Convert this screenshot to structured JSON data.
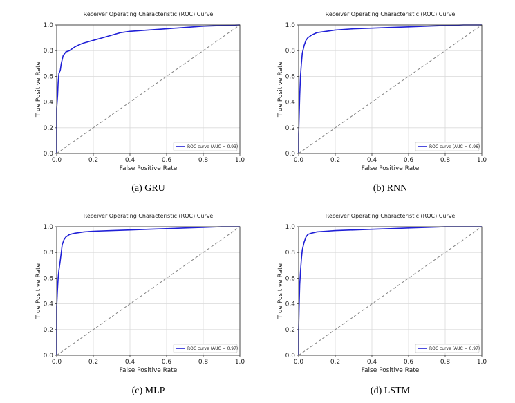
{
  "chart_data": [
    {
      "type": "line",
      "caption": "(a) GRU",
      "title": "Receiver Operating Characteristic (ROC) Curve",
      "xlabel": "False Positive Rate",
      "ylabel": "True Positive Rate",
      "xlim": [
        0,
        1
      ],
      "ylim": [
        0,
        1.0
      ],
      "xticks": [
        "0.0",
        "0.2",
        "0.4",
        "0.6",
        "0.8",
        "1.0"
      ],
      "yticks": [
        "0.0",
        "0.2",
        "0.4",
        "0.6",
        "0.8",
        "1.0"
      ],
      "grid": true,
      "legend_position": "lower right",
      "series": [
        {
          "name": "ROC curve (AUC = 0.93)",
          "color": "#1f1fd6",
          "x": [
            0,
            0,
            0.005,
            0.008,
            0.012,
            0.02,
            0.025,
            0.035,
            0.05,
            0.07,
            0.1,
            0.13,
            0.15,
            0.2,
            0.25,
            0.3,
            0.35,
            0.4,
            0.5,
            0.6,
            0.7,
            0.8,
            0.9,
            1.0
          ],
          "y": [
            0,
            0.35,
            0.45,
            0.55,
            0.62,
            0.65,
            0.7,
            0.76,
            0.79,
            0.8,
            0.83,
            0.85,
            0.86,
            0.88,
            0.9,
            0.92,
            0.94,
            0.95,
            0.96,
            0.97,
            0.98,
            0.99,
            0.995,
            1.0
          ]
        },
        {
          "name": "",
          "color": "#808080",
          "dashed": true,
          "x": [
            0,
            1
          ],
          "y": [
            0,
            1
          ]
        }
      ]
    },
    {
      "type": "line",
      "caption": "(b) RNN",
      "title": "Receiver Operating Characteristic (ROC) Curve",
      "xlabel": "False Positive Rate",
      "ylabel": "True Positive Rate",
      "xlim": [
        0,
        1
      ],
      "ylim": [
        0,
        1.0
      ],
      "xticks": [
        "0.0",
        "0.2",
        "0.4",
        "0.6",
        "0.8",
        "1.0"
      ],
      "yticks": [
        "0.0",
        "0.2",
        "0.4",
        "0.6",
        "0.8",
        "1.0"
      ],
      "grid": true,
      "legend_position": "lower right",
      "series": [
        {
          "name": "ROC curve (AUC = 0.96)",
          "color": "#1f1fd6",
          "x": [
            0,
            0,
            0.003,
            0.006,
            0.01,
            0.015,
            0.02,
            0.03,
            0.04,
            0.05,
            0.07,
            0.1,
            0.15,
            0.2,
            0.3,
            0.4,
            0.5,
            0.6,
            0.7,
            0.8,
            0.9,
            1.0
          ],
          "y": [
            0,
            0.15,
            0.3,
            0.45,
            0.6,
            0.7,
            0.78,
            0.84,
            0.88,
            0.9,
            0.92,
            0.94,
            0.95,
            0.96,
            0.97,
            0.975,
            0.98,
            0.985,
            0.99,
            0.995,
            1.0,
            1.0
          ]
        },
        {
          "name": "",
          "color": "#808080",
          "dashed": true,
          "x": [
            0,
            1
          ],
          "y": [
            0,
            1
          ]
        }
      ]
    },
    {
      "type": "line",
      "caption": "(c) MLP",
      "title": "Receiver Operating Characteristic (ROC) Curve",
      "xlabel": "False Positive Rate",
      "ylabel": "True Positive Rate",
      "xlim": [
        0,
        1
      ],
      "ylim": [
        0,
        1.0
      ],
      "xticks": [
        "0.0",
        "0.2",
        "0.4",
        "0.6",
        "0.8",
        "1.0"
      ],
      "yticks": [
        "0.0",
        "0.2",
        "0.4",
        "0.6",
        "0.8",
        "1.0"
      ],
      "grid": true,
      "legend_position": "lower right",
      "series": [
        {
          "name": "ROC curve (AUC = 0.97)",
          "color": "#1f1fd6",
          "x": [
            0,
            0,
            0.004,
            0.008,
            0.012,
            0.018,
            0.025,
            0.03,
            0.04,
            0.05,
            0.07,
            0.1,
            0.15,
            0.2,
            0.3,
            0.4,
            0.5,
            0.6,
            0.7,
            0.8,
            0.9,
            1.0
          ],
          "y": [
            0,
            0.38,
            0.5,
            0.6,
            0.66,
            0.72,
            0.8,
            0.86,
            0.9,
            0.92,
            0.94,
            0.95,
            0.96,
            0.965,
            0.97,
            0.975,
            0.98,
            0.985,
            0.99,
            0.995,
            1.0,
            1.0
          ]
        },
        {
          "name": "",
          "color": "#808080",
          "dashed": true,
          "x": [
            0,
            1
          ],
          "y": [
            0,
            1
          ]
        }
      ]
    },
    {
      "type": "line",
      "caption": "(d) LSTM",
      "title": "Receiver Operating Characteristic (ROC) Curve",
      "xlabel": "False Positive Rate",
      "ylabel": "True Positive Rate",
      "xlim": [
        0,
        1
      ],
      "ylim": [
        0,
        1.0
      ],
      "xticks": [
        "0.0",
        "0.2",
        "0.4",
        "0.6",
        "0.8",
        "1.0"
      ],
      "yticks": [
        "0.0",
        "0.2",
        "0.4",
        "0.6",
        "0.8",
        "1.0"
      ],
      "grid": true,
      "legend_position": "lower right",
      "series": [
        {
          "name": "ROC curve (AUC = 0.97)",
          "color": "#1f1fd6",
          "x": [
            0,
            0,
            0.003,
            0.006,
            0.01,
            0.015,
            0.02,
            0.03,
            0.04,
            0.05,
            0.07,
            0.1,
            0.15,
            0.2,
            0.3,
            0.4,
            0.5,
            0.6,
            0.7,
            0.8,
            0.9,
            1.0
          ],
          "y": [
            0,
            0.2,
            0.4,
            0.55,
            0.65,
            0.75,
            0.82,
            0.88,
            0.92,
            0.94,
            0.95,
            0.96,
            0.965,
            0.97,
            0.975,
            0.98,
            0.985,
            0.99,
            0.995,
            1.0,
            1.0,
            1.0
          ]
        },
        {
          "name": "",
          "color": "#808080",
          "dashed": true,
          "x": [
            0,
            1
          ],
          "y": [
            0,
            1
          ]
        }
      ]
    }
  ]
}
